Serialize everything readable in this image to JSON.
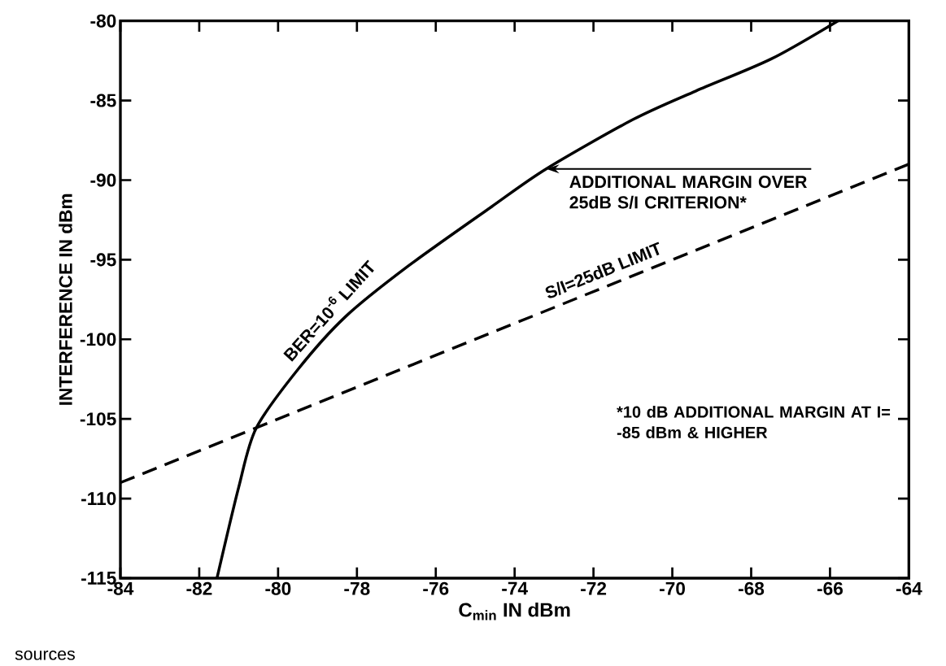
{
  "chart_data": {
    "type": "line",
    "xlabel": "C$_{min}$ IN dBm",
    "ylabel": "INTERFERENCE IN dBm",
    "xlim": [
      -84,
      -64
    ],
    "ylim": [
      -115,
      -80
    ],
    "xticks": [
      -84,
      -82,
      -80,
      -78,
      -76,
      -74,
      -72,
      -70,
      -68,
      -66,
      -64
    ],
    "yticks": [
      -80,
      -85,
      -90,
      -95,
      -100,
      -105,
      -110,
      -115
    ],
    "series": [
      {
        "name": "BER=10$^{-6}$ LIMIT",
        "color": "#000000",
        "line_style": "solid",
        "x": [
          -81.55,
          -81.0,
          -80.56,
          -79.5,
          -78.3,
          -76.7,
          -74.6,
          -73.2,
          -71,
          -69.4,
          -67.5,
          -65.8
        ],
        "values": [
          -115,
          -109.3,
          -105.6,
          -101.9,
          -98.6,
          -95.4,
          -91.7,
          -89.3,
          -86.2,
          -84.4,
          -82.4,
          -80
        ]
      },
      {
        "name": "S/I=25dB LIMIT",
        "color": "#000000",
        "line_style": "dashed",
        "x": [
          -84,
          -64
        ],
        "values": [
          -109,
          -89
        ]
      }
    ],
    "annotations": [
      {
        "text": "ADDITIONAL MARGIN OVER 25dB S/I CRITERION*",
        "x": -73.2,
        "y": -89.3
      },
      "*10 dB ADDITIONAL MARGIN AT I= -85 dBm & HIGHER",
      "sources"
    ]
  }
}
